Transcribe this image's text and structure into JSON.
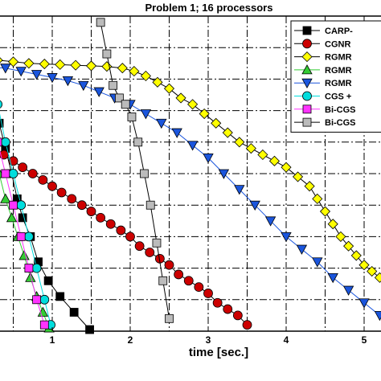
{
  "chart_data": {
    "type": "line",
    "title": "Problem 1; 16 processors",
    "xlabel": "time [sec.]",
    "ylabel": "",
    "x_ticks": [
      "1",
      "2",
      "3",
      "4",
      "5"
    ],
    "xlim": [
      -0.7,
      5.3
    ],
    "ylim": [
      0,
      1
    ],
    "grid": true,
    "y_note": "y-axis tick labels not visible (cropped); y values normalized 0 (bottom) to 1 (top)",
    "legend_position": "top-right",
    "series": [
      {
        "name": "CARP-",
        "color": "#000000",
        "marker": "square",
        "x": [
          0.05,
          0.12,
          0.18,
          0.25,
          0.32,
          0.4,
          0.48,
          0.55,
          0.62,
          0.72,
          0.82,
          0.95,
          1.1,
          1.28,
          1.48
        ],
        "y": [
          0.98,
          0.86,
          0.8,
          0.72,
          0.66,
          0.58,
          0.5,
          0.42,
          0.36,
          0.3,
          0.22,
          0.16,
          0.11,
          0.06,
          0.005
        ]
      },
      {
        "name": "CGNR",
        "color": "#cc0000",
        "marker": "circle",
        "x": [
          0.0,
          0.12,
          0.25,
          0.38,
          0.5,
          0.62,
          0.75,
          0.88,
          1.0,
          1.12,
          1.25,
          1.38,
          1.5,
          1.62,
          1.75,
          1.88,
          2.0,
          2.12,
          2.25,
          2.38,
          2.5,
          2.62,
          2.75,
          2.88,
          3.0,
          3.12,
          3.25,
          3.38,
          3.5
        ],
        "y": [
          0.82,
          0.62,
          0.58,
          0.56,
          0.54,
          0.52,
          0.5,
          0.48,
          0.46,
          0.44,
          0.42,
          0.4,
          0.38,
          0.36,
          0.34,
          0.32,
          0.3,
          0.27,
          0.25,
          0.23,
          0.21,
          0.18,
          0.16,
          0.14,
          0.12,
          0.09,
          0.07,
          0.05,
          0.02
        ]
      },
      {
        "name": "RGMR",
        "color": "#ffff00",
        "marker": "diamond",
        "x": [
          0.0,
          0.3,
          0.5,
          0.7,
          0.9,
          1.1,
          1.3,
          1.5,
          1.7,
          1.9,
          2.05,
          2.2,
          2.35,
          2.5,
          2.65,
          2.8,
          2.95,
          3.1,
          3.25,
          3.4,
          3.55,
          3.7,
          3.85,
          4.0,
          4.15,
          4.3,
          4.4,
          4.5,
          4.6,
          4.7,
          4.8,
          4.9,
          5.0,
          5.1,
          5.2
        ],
        "y": [
          0.87,
          0.86,
          0.855,
          0.85,
          0.848,
          0.846,
          0.844,
          0.842,
          0.84,
          0.835,
          0.825,
          0.81,
          0.79,
          0.77,
          0.74,
          0.72,
          0.69,
          0.66,
          0.63,
          0.6,
          0.58,
          0.56,
          0.54,
          0.52,
          0.49,
          0.46,
          0.42,
          0.38,
          0.34,
          0.3,
          0.27,
          0.24,
          0.21,
          0.19,
          0.17
        ]
      },
      {
        "name": "RGMR",
        "color": "#33cc33",
        "marker": "triangle-up",
        "x": [
          0.0,
          0.08,
          0.16,
          0.24,
          0.32,
          0.4,
          0.48,
          0.56,
          0.64,
          0.72,
          0.8,
          0.88,
          0.96
        ],
        "y": [
          0.85,
          0.74,
          0.66,
          0.58,
          0.5,
          0.42,
          0.36,
          0.3,
          0.24,
          0.17,
          0.11,
          0.06,
          0.01
        ]
      },
      {
        "name": "RGMR",
        "color": "#1a55dd",
        "marker": "triangle-down",
        "x": [
          0.0,
          0.4,
          0.6,
          0.8,
          1.0,
          1.2,
          1.4,
          1.6,
          1.8,
          2.0,
          2.2,
          2.4,
          2.6,
          2.8,
          3.0,
          3.2,
          3.4,
          3.6,
          3.8,
          4.0,
          4.2,
          4.4,
          4.6,
          4.8,
          5.0,
          5.2
        ],
        "y": [
          0.84,
          0.835,
          0.825,
          0.815,
          0.805,
          0.795,
          0.78,
          0.76,
          0.74,
          0.72,
          0.69,
          0.66,
          0.63,
          0.59,
          0.55,
          0.5,
          0.45,
          0.4,
          0.35,
          0.3,
          0.26,
          0.22,
          0.17,
          0.13,
          0.09,
          0.05
        ]
      },
      {
        "name": "CGS +",
        "color": "#00dddd",
        "marker": "circle",
        "x": [
          -0.55,
          -0.3,
          -0.15,
          0.0,
          0.1,
          0.2,
          0.3,
          0.4,
          0.5,
          0.6,
          0.7,
          0.8,
          0.9,
          0.98
        ],
        "y": [
          0.98,
          0.97,
          0.92,
          0.88,
          0.83,
          0.78,
          0.72,
          0.6,
          0.5,
          0.4,
          0.3,
          0.2,
          0.1,
          0.02
        ]
      },
      {
        "name": "Bi-CGS",
        "color": "#ff33ff",
        "marker": "square",
        "x": [
          -0.6,
          -0.4,
          -0.2,
          0.0,
          0.1,
          0.2,
          0.3,
          0.4,
          0.5,
          0.6,
          0.7,
          0.8,
          0.9
        ],
        "y": [
          0.9,
          0.88,
          0.86,
          0.85,
          0.78,
          0.7,
          0.6,
          0.5,
          0.4,
          0.3,
          0.2,
          0.1,
          0.02
        ]
      },
      {
        "name": "Bi-CGS",
        "color": "#bbbbbb",
        "marker": "square",
        "x": [
          1.62,
          1.7,
          1.78,
          1.86,
          1.94,
          2.02,
          2.1,
          2.18,
          2.26,
          2.34,
          2.42,
          2.5
        ],
        "y": [
          0.98,
          0.88,
          0.78,
          0.74,
          0.72,
          0.68,
          0.6,
          0.5,
          0.4,
          0.28,
          0.16,
          0.04
        ]
      }
    ]
  }
}
